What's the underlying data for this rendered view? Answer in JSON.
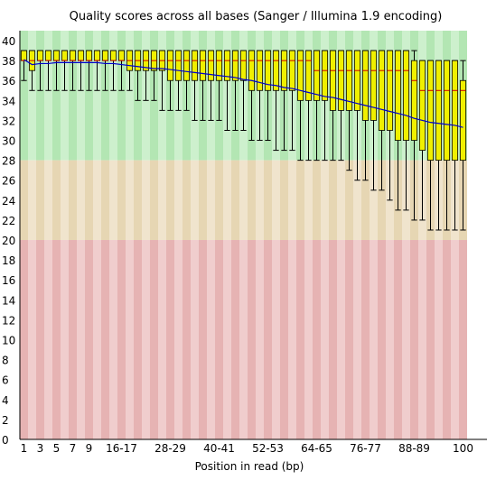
{
  "chart_data": {
    "type": "box",
    "title": "Quality scores across all bases (Sanger / Illumina 1.9 encoding)",
    "xlabel": "Position in read (bp)",
    "ylabel": "",
    "ylim": [
      0,
      41
    ],
    "y_ticks": [
      0,
      2,
      4,
      6,
      8,
      10,
      12,
      14,
      16,
      18,
      20,
      22,
      24,
      26,
      28,
      30,
      32,
      34,
      36,
      38,
      40
    ],
    "x_tick_labels": [
      "1",
      "3",
      "5",
      "7",
      "9",
      "16-17",
      "28-29",
      "40-41",
      "52-53",
      "64-65",
      "76-77",
      "88-89",
      "100"
    ],
    "categories": [
      "1",
      "2",
      "3",
      "4",
      "5",
      "6",
      "7",
      "8",
      "9",
      "10-11",
      "12-13",
      "14-15",
      "16-17",
      "18-19",
      "20-21",
      "22-23",
      "24-25",
      "26-27",
      "28-29",
      "30-31",
      "32-33",
      "34-35",
      "36-37",
      "38-39",
      "40-41",
      "42-43",
      "44-45",
      "46-47",
      "48-49",
      "50-51",
      "52-53",
      "54-55",
      "56-57",
      "58-59",
      "60-61",
      "62-63",
      "64-65",
      "66-67",
      "68-69",
      "70-71",
      "72-73",
      "74-75",
      "76-77",
      "78-79",
      "80-81",
      "82-83",
      "84-85",
      "86-87",
      "88-89",
      "90-91",
      "92-93",
      "94-95",
      "96-97",
      "98-99",
      "100"
    ],
    "x_tick_indices": [
      0,
      2,
      4,
      6,
      8,
      12,
      18,
      24,
      30,
      36,
      42,
      48,
      54
    ],
    "bands": [
      {
        "from": 28,
        "to": 41,
        "color": "#b3e6b3",
        "alt": "#cdf0cd"
      },
      {
        "from": 20,
        "to": 28,
        "color": "#e6d6b3",
        "alt": "#f0e4cd"
      },
      {
        "from": 0,
        "to": 20,
        "color": "#e6b3b3",
        "alt": "#f0cdcd"
      }
    ],
    "box_color": "#f0f000",
    "median_color": "#cc0000",
    "mean_color": "#0000cc",
    "series": [
      {
        "name": "mean",
        "values": [
          38.1,
          37.6,
          37.7,
          37.7,
          37.8,
          37.8,
          37.8,
          37.8,
          37.8,
          37.8,
          37.7,
          37.7,
          37.6,
          37.5,
          37.4,
          37.3,
          37.2,
          37.2,
          37.1,
          37.0,
          36.9,
          36.8,
          36.7,
          36.6,
          36.5,
          36.4,
          36.3,
          36.1,
          36.0,
          35.8,
          35.6,
          35.5,
          35.3,
          35.2,
          35.0,
          34.8,
          34.6,
          34.4,
          34.3,
          34.1,
          33.9,
          33.7,
          33.5,
          33.3,
          33.1,
          32.9,
          32.7,
          32.5,
          32.2,
          32.0,
          31.8,
          31.7,
          31.6,
          31.5,
          31.3
        ]
      },
      {
        "name": "median",
        "values": [
          38,
          38,
          38,
          38,
          38,
          38,
          38,
          38,
          38,
          38,
          38,
          38,
          38,
          38,
          38,
          38,
          38,
          38,
          38,
          38,
          38,
          38,
          38,
          38,
          38,
          38,
          38,
          38,
          38,
          38,
          38,
          38,
          38,
          38,
          38,
          38,
          37,
          37,
          37,
          37,
          37,
          37,
          37,
          37,
          37,
          37,
          37,
          37,
          36,
          35,
          35,
          35,
          35,
          35,
          35
        ]
      },
      {
        "name": "q1",
        "values": [
          38,
          37,
          38,
          38,
          38,
          38,
          38,
          38,
          38,
          38,
          38,
          38,
          38,
          37,
          37,
          37,
          37,
          37,
          36,
          36,
          36,
          36,
          36,
          36,
          36,
          36,
          36,
          36,
          35,
          35,
          35,
          35,
          35,
          35,
          34,
          34,
          34,
          34,
          33,
          33,
          33,
          33,
          32,
          32,
          31,
          31,
          30,
          30,
          30,
          29,
          28,
          28,
          28,
          28,
          28
        ]
      },
      {
        "name": "q3",
        "values": [
          39,
          39,
          39,
          39,
          39,
          39,
          39,
          39,
          39,
          39,
          39,
          39,
          39,
          39,
          39,
          39,
          39,
          39,
          39,
          39,
          39,
          39,
          39,
          39,
          39,
          39,
          39,
          39,
          39,
          39,
          39,
          39,
          39,
          39,
          39,
          39,
          39,
          39,
          39,
          39,
          39,
          39,
          39,
          39,
          39,
          39,
          39,
          39,
          38,
          38,
          38,
          38,
          38,
          38,
          36
        ]
      },
      {
        "name": "p10",
        "values": [
          36,
          35,
          35,
          35,
          35,
          35,
          35,
          35,
          35,
          35,
          35,
          35,
          35,
          35,
          34,
          34,
          34,
          33,
          33,
          33,
          33,
          32,
          32,
          32,
          32,
          31,
          31,
          31,
          30,
          30,
          30,
          29,
          29,
          29,
          28,
          28,
          28,
          28,
          28,
          28,
          27,
          26,
          26,
          25,
          25,
          24,
          23,
          23,
          22,
          22,
          21,
          21,
          21,
          21,
          21
        ]
      },
      {
        "name": "p90",
        "values": [
          39,
          39,
          39,
          39,
          39,
          39,
          39,
          39,
          39,
          39,
          39,
          39,
          39,
          39,
          39,
          39,
          39,
          39,
          39,
          39,
          39,
          39,
          39,
          39,
          39,
          39,
          39,
          39,
          39,
          39,
          39,
          39,
          39,
          39,
          39,
          39,
          39,
          39,
          39,
          39,
          39,
          39,
          39,
          39,
          39,
          39,
          39,
          39,
          39,
          38,
          38,
          38,
          38,
          38,
          38
        ]
      }
    ]
  }
}
